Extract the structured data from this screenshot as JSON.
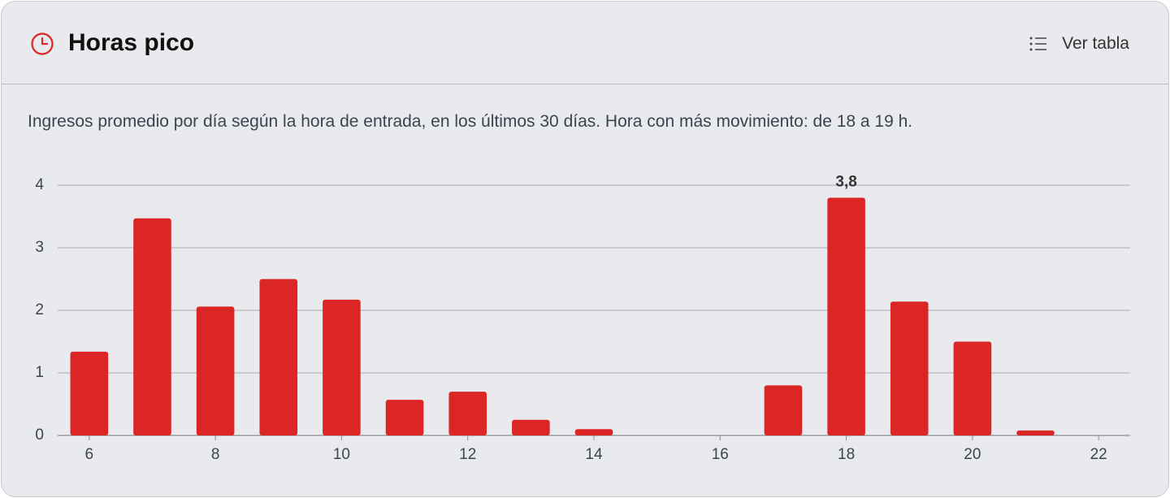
{
  "header": {
    "title": "Horas pico",
    "action": "Ver tabla"
  },
  "description": "Ingresos promedio por día según la hora de entrada, en los últimos 30 días. Hora con más movimiento: de 18 a 19 h.",
  "chart_data": {
    "type": "bar",
    "color": "#dc2626",
    "x": [
      6,
      7,
      8,
      9,
      10,
      11,
      12,
      13,
      14,
      15,
      16,
      17,
      18,
      19,
      20,
      21
    ],
    "values": [
      1.34,
      3.47,
      2.06,
      2.5,
      2.17,
      0.57,
      0.7,
      0.25,
      0.1,
      0,
      0,
      0.8,
      3.8,
      2.14,
      1.5,
      0.08
    ],
    "value_labels": [
      null,
      null,
      null,
      null,
      null,
      null,
      null,
      null,
      null,
      null,
      null,
      null,
      "3,8",
      null,
      null,
      null
    ],
    "xlim": [
      5.5,
      22.5
    ],
    "xticks": [
      6,
      8,
      10,
      12,
      14,
      16,
      18,
      20,
      22
    ],
    "ylim": [
      0,
      4
    ],
    "yticks": [
      0,
      1,
      2,
      3,
      4
    ],
    "grid": true
  }
}
